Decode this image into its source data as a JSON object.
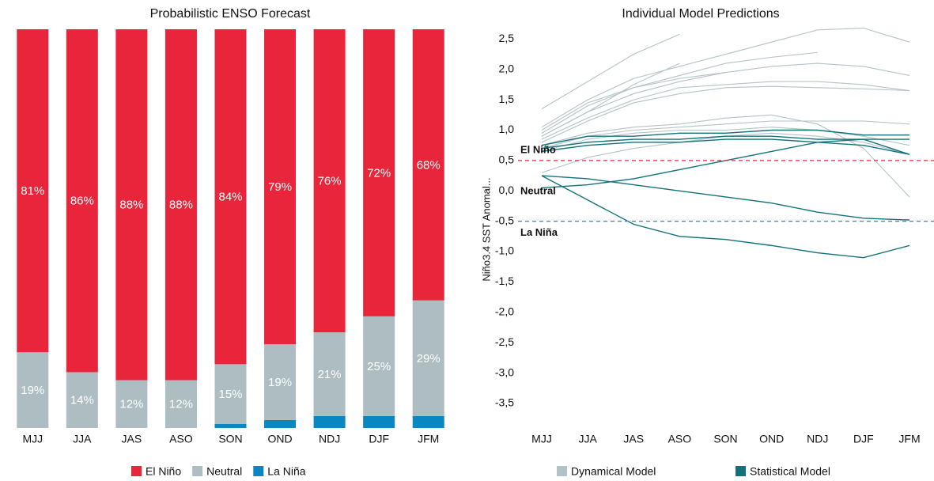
{
  "chart_data": [
    {
      "type": "stacked-bar",
      "title": "Probabilistic ENSO Forecast",
      "categories": [
        "MJJ",
        "JJA",
        "JAS",
        "ASO",
        "SON",
        "OND",
        "NDJ",
        "DJF",
        "JFM"
      ],
      "ylim": [
        0,
        100
      ],
      "series": [
        {
          "name": "La Niña",
          "color": "#0a87c0",
          "values": [
            0,
            0,
            0,
            0,
            1,
            2,
            3,
            3,
            3
          ]
        },
        {
          "name": "Neutral",
          "color": "#adbdc1",
          "values": [
            19,
            14,
            12,
            12,
            15,
            19,
            21,
            25,
            29
          ],
          "value_labels": [
            "19%",
            "14%",
            "12%",
            "12%",
            "15%",
            "19%",
            "21%",
            "25%",
            "29%"
          ]
        },
        {
          "name": "El Niño",
          "color": "#e8253a",
          "values": [
            81,
            86,
            88,
            88,
            84,
            79,
            76,
            72,
            68
          ],
          "value_labels": [
            "81%",
            "86%",
            "88%",
            "88%",
            "84%",
            "79%",
            "76%",
            "72%",
            "68%"
          ]
        }
      ],
      "legend_order": [
        "El Niño",
        "Neutral",
        "La Niña"
      ]
    },
    {
      "type": "multi-line",
      "title": "Individual Model Predictions",
      "y_label": "Niño3.4 SST Anomal...",
      "categories": [
        "MJJ",
        "JJA",
        "JAS",
        "ASO",
        "SON",
        "OND",
        "NDJ",
        "DJF",
        "JFM"
      ],
      "ylim": [
        -3.8,
        2.7
      ],
      "yticks": [
        {
          "value": 2.5,
          "label": "2,5"
        },
        {
          "value": 2.0,
          "label": "2,0"
        },
        {
          "value": 1.5,
          "label": "1,5"
        },
        {
          "value": 1.0,
          "label": "1,0"
        },
        {
          "value": 0.5,
          "label": "0,5"
        },
        {
          "value": 0,
          "label": "0,0"
        },
        {
          "value": -0.5,
          "label": "-0,5"
        },
        {
          "value": -1.0,
          "label": "-1,0"
        },
        {
          "value": -1.5,
          "label": "-1,5"
        },
        {
          "value": -2.0,
          "label": "-2,0"
        },
        {
          "value": -2.5,
          "label": "-2,5"
        },
        {
          "value": -3.0,
          "label": "-3,0"
        },
        {
          "value": -3.5,
          "label": "-3,5"
        }
      ],
      "reference_lines": [
        {
          "value": 0.5,
          "label": "El Niño",
          "color": "#e8253a"
        },
        {
          "value": -0.5,
          "label": "La Niña",
          "color": "#1a8fc4"
        }
      ],
      "annotations": [
        {
          "text": "Neutral",
          "value": 0,
          "color": "#b5c4c8"
        }
      ],
      "series": [
        {
          "name": "Dynamical Model",
          "color": "#b3c2c6",
          "lines": [
            [
              1.35,
              1.8,
              2.25,
              2.58,
              null,
              null,
              null,
              null,
              null
            ],
            [
              1.05,
              1.5,
              1.85,
              2.05,
              2.25,
              2.45,
              2.65,
              2.68,
              2.45
            ],
            [
              1.0,
              1.45,
              1.7,
              1.9,
              2.1,
              2.2,
              2.28,
              null,
              null
            ],
            [
              0.95,
              1.4,
              1.7,
              1.85,
              1.95,
              2.05,
              2.1,
              2.05,
              1.9
            ],
            [
              0.9,
              1.3,
              1.6,
              1.8,
              1.95,
              null,
              null,
              null,
              null
            ],
            [
              0.9,
              1.3,
              1.75,
              2.1,
              null,
              null,
              null,
              null,
              null
            ],
            [
              0.85,
              1.2,
              1.5,
              1.7,
              1.75,
              1.8,
              1.8,
              1.75,
              1.65
            ],
            [
              0.8,
              1.15,
              1.45,
              1.6,
              1.7,
              1.72,
              1.7,
              1.68,
              1.65
            ],
            [
              0.75,
              0.95,
              1.05,
              1.1,
              1.2,
              1.25,
              1.1,
              0.7,
              -0.1
            ],
            [
              0.7,
              0.9,
              1.0,
              1.05,
              1.1,
              1.15,
              1.15,
              1.15,
              1.1
            ],
            [
              0.65,
              0.85,
              0.95,
              1.0,
              1.0,
              1.05,
              1.0,
              0.9,
              0.75
            ],
            [
              0.3,
              0.55,
              0.7,
              0.8,
              0.9,
              0.95,
              0.9,
              0.8,
              0.6
            ]
          ]
        },
        {
          "name": "Statistical Model",
          "color": "#137279",
          "lines": [
            [
              0.75,
              0.9,
              0.9,
              0.95,
              0.95,
              1.0,
              1.0,
              0.92,
              0.92
            ],
            [
              0.7,
              0.8,
              0.85,
              0.85,
              0.9,
              0.9,
              0.85,
              0.85,
              0.6
            ],
            [
              0.65,
              0.75,
              0.8,
              0.8,
              0.85,
              0.85,
              0.8,
              0.75,
              0.6
            ],
            [
              0.05,
              0.1,
              0.2,
              0.35,
              0.5,
              0.65,
              0.8,
              0.85,
              0.85
            ],
            [
              0.25,
              0.2,
              0.1,
              0.0,
              -0.1,
              -0.2,
              -0.35,
              -0.45,
              -0.48
            ],
            [
              0.25,
              -0.15,
              -0.55,
              -0.75,
              -0.8,
              -0.9,
              -1.02,
              -1.1,
              -0.9
            ]
          ]
        }
      ]
    }
  ]
}
